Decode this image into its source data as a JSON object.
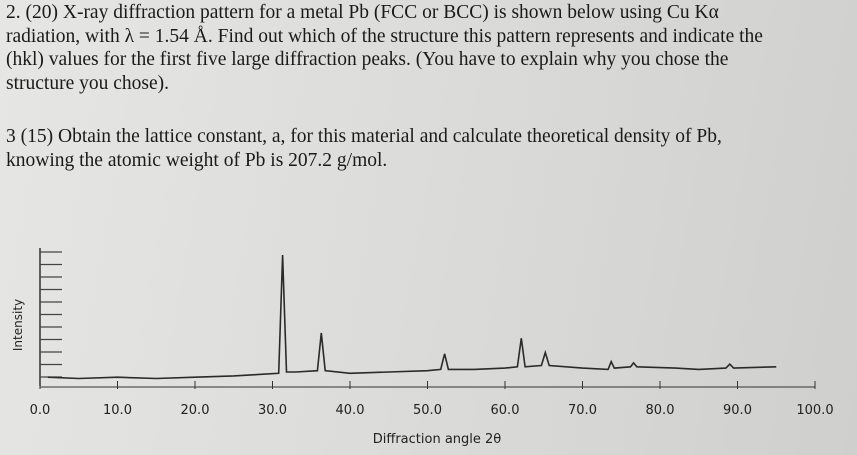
{
  "questions": [
    {
      "lines": [
        "2. (20) X-ray diffraction pattern for a metal Pb (FCC or BCC) is shown below using Cu Kα",
        "radiation, with λ = 1.54 Å. Find out which of the structure this pattern represents and indicate the",
        "(hkl) values for the first five large diffraction peaks. (You have to explain why you chose the",
        "structure you chose)."
      ]
    },
    {
      "lines": [
        "3 (15) Obtain the lattice constant, a, for this material and calculate theoretical density of Pb,",
        "knowing the atomic weight of Pb is 207.2 g/mol."
      ]
    }
  ],
  "chart_data": {
    "type": "line",
    "x_label": "Diffraction angle 2θ",
    "y_label": "Intensity",
    "x": [
      1,
      5,
      10,
      15,
      20,
      25,
      28,
      30.8,
      31.3,
      31.8,
      33,
      35.8,
      36.3,
      36.8,
      40,
      45,
      50,
      51.7,
      52.2,
      52.7,
      56,
      60,
      61.6,
      62.1,
      62.6,
      64.7,
      65.2,
      65.7,
      70,
      73.3,
      73.7,
      74.1,
      76.2,
      76.6,
      77,
      82,
      85,
      88.5,
      89,
      89.5,
      95
    ],
    "values": [
      6,
      5,
      6,
      5,
      6,
      7,
      8,
      9,
      100,
      10,
      10,
      11,
      40,
      11,
      9,
      10,
      11,
      12,
      24,
      12,
      12,
      13,
      14,
      36,
      14,
      15,
      25,
      15,
      13,
      12,
      18,
      13,
      14,
      17,
      14,
      13,
      12,
      13,
      16,
      13,
      14
    ],
    "color": "#2a2a2a",
    "xlim": [
      0,
      100
    ],
    "ylim": [
      0,
      100
    ],
    "xticks": [
      {
        "value": 0,
        "label": "0.0"
      },
      {
        "value": 10,
        "label": "10.0"
      },
      {
        "value": 20,
        "label": "20.0"
      },
      {
        "value": 30,
        "label": "30.0"
      },
      {
        "value": 40,
        "label": "40.0"
      },
      {
        "value": 50,
        "label": "50.0"
      },
      {
        "value": 60,
        "label": "60.0"
      },
      {
        "value": 70,
        "label": "70.0"
      },
      {
        "value": 80,
        "label": "80.0"
      },
      {
        "value": 90,
        "label": "90.0"
      },
      {
        "value": 100,
        "label": "100.0"
      }
    ]
  }
}
